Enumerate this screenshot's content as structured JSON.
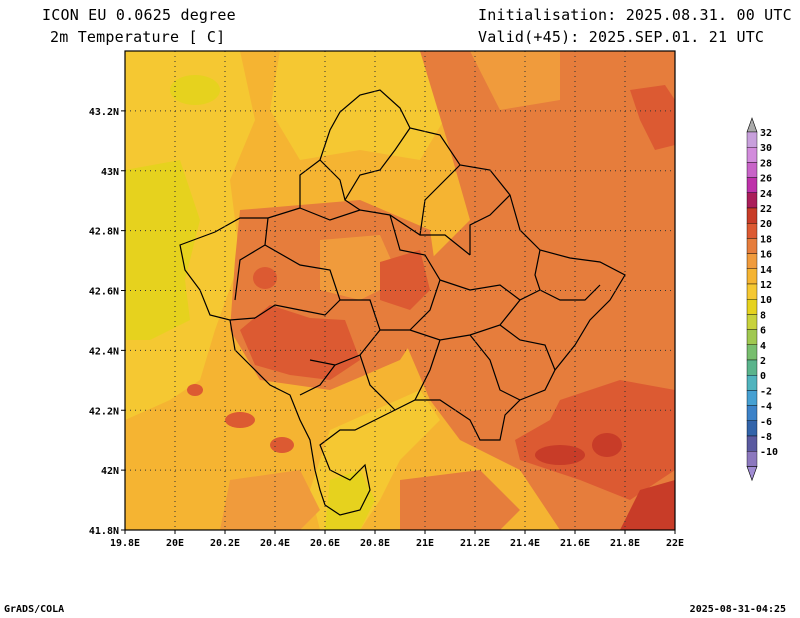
{
  "header": {
    "model_title": "ICON EU 0.0625 degree",
    "variable_title": "2m Temperature [ C]",
    "initialisation": "Initialisation: 2025.08.31. 00 UTC",
    "valid": "Valid(+45): 2025.SEP.01. 21 UTC"
  },
  "axes": {
    "x_ticks": [
      "19.8E",
      "20E",
      "20.2E",
      "20.4E",
      "20.6E",
      "20.8E",
      "21E",
      "21.2E",
      "21.4E",
      "21.6E",
      "21.8E",
      "22E"
    ],
    "x_values": [
      19.8,
      20.0,
      20.2,
      20.4,
      20.6,
      20.8,
      21.0,
      21.2,
      21.4,
      21.6,
      21.8,
      22.0
    ],
    "y_ticks": [
      "41.8N",
      "42N",
      "42.2N",
      "42.4N",
      "42.6N",
      "42.8N",
      "43N",
      "43.2N"
    ],
    "y_values": [
      41.8,
      42.0,
      42.2,
      42.4,
      42.6,
      42.8,
      43.0,
      43.2
    ],
    "lon_range": [
      19.8,
      22.0
    ],
    "lat_range": [
      41.8,
      43.4
    ],
    "grid": "dotted"
  },
  "colorbar": {
    "levels": [
      "32",
      "30",
      "28",
      "26",
      "24",
      "22",
      "20",
      "18",
      "16",
      "14",
      "12",
      "10",
      "8",
      "6",
      "4",
      "2",
      "0",
      "-2",
      "-4",
      "-6",
      "-8",
      "-10"
    ],
    "colors": [
      "#c8a0dc",
      "#d28cdc",
      "#c864c8",
      "#be32aa",
      "#aa1e5a",
      "#c83c28",
      "#dc5a32",
      "#e67d3c",
      "#f09b3c",
      "#f5b432",
      "#f5c832",
      "#e6d21e",
      "#c8d23c",
      "#a0c850",
      "#78be6e",
      "#5ab48c",
      "#50b4be",
      "#46a0d2",
      "#3c82c8",
      "#3264aa",
      "#5a5aa0",
      "#8c78be"
    ],
    "top_cap": "#aaaaaa",
    "bottom_cap": "#a08cd2"
  },
  "footer": {
    "left": "GrADS/COLA",
    "right": "2025-08-31-04:25"
  }
}
